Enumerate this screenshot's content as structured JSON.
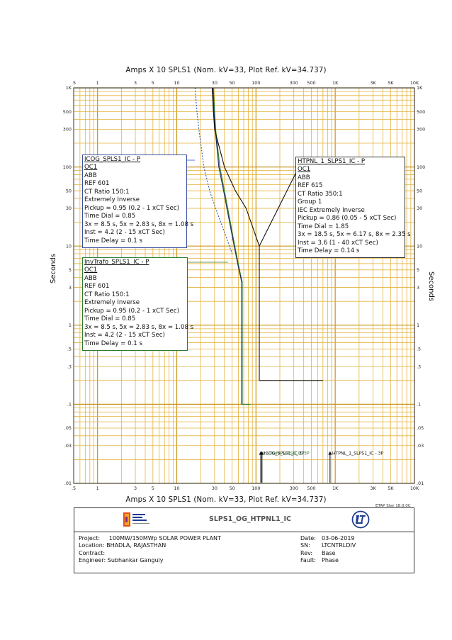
{
  "chart_data": {
    "type": "line",
    "title_top": "Amps  X  10   SPLS1 (Nom. kV=33, Plot Ref. kV=34.737)",
    "title_bottom": "Amps  X  10   SPLS1 (Nom. kV=33, Plot Ref. kV=34.737)",
    "ylabel": "Seconds",
    "x_scale": "log",
    "y_scale": "log",
    "xlim": [
      0.5,
      10000
    ],
    "ylim": [
      0.01,
      1000
    ],
    "x_ticks": [
      {
        "v": 0.5,
        "t": ".5"
      },
      {
        "v": 1,
        "t": "1"
      },
      {
        "v": 3,
        "t": "3"
      },
      {
        "v": 5,
        "t": "5"
      },
      {
        "v": 10,
        "t": "10"
      },
      {
        "v": 30,
        "t": "30"
      },
      {
        "v": 50,
        "t": "50"
      },
      {
        "v": 100,
        "t": "100"
      },
      {
        "v": 300,
        "t": "300"
      },
      {
        "v": 500,
        "t": "500"
      },
      {
        "v": 1000,
        "t": "1K"
      },
      {
        "v": 3000,
        "t": "3K"
      },
      {
        "v": 5000,
        "t": "5K"
      },
      {
        "v": 10000,
        "t": "10K"
      }
    ],
    "y_ticks": [
      {
        "v": 1000,
        "t": "1K"
      },
      {
        "v": 500,
        "t": "500"
      },
      {
        "v": 300,
        "t": "300"
      },
      {
        "v": 100,
        "t": "100"
      },
      {
        "v": 50,
        "t": "50"
      },
      {
        "v": 30,
        "t": "30"
      },
      {
        "v": 10,
        "t": "10"
      },
      {
        "v": 5,
        "t": "5"
      },
      {
        "v": 3,
        "t": "3"
      },
      {
        "v": 1,
        "t": "1"
      },
      {
        "v": 0.5,
        "t": ".5"
      },
      {
        "v": 0.3,
        "t": ".3"
      },
      {
        "v": 0.1,
        "t": ".1"
      },
      {
        "v": 0.05,
        "t": ".05"
      },
      {
        "v": 0.03,
        "t": ".03"
      },
      {
        "v": 0.01,
        "t": ".01"
      }
    ],
    "grid": true,
    "colors": {
      "grid_minor": "#e3b23c",
      "grid_major": "#c8961e",
      "frame": "#333333"
    },
    "series": [
      {
        "name": "ICOG_SPLS1_IC - P",
        "color": "#3050c8",
        "dash": "2,2",
        "points": [
          [
            17,
            1000
          ],
          [
            18,
            500
          ],
          [
            19,
            300
          ],
          [
            22,
            100
          ],
          [
            26,
            50
          ],
          [
            31,
            30
          ],
          [
            40,
            15
          ],
          [
            50,
            8
          ]
        ]
      },
      {
        "name": "InvTrafo_SPLS1_IC - P",
        "color": "#2f7a2f",
        "dash": "",
        "points": [
          [
            29,
            1000
          ],
          [
            30,
            500
          ],
          [
            31,
            300
          ],
          [
            35,
            100
          ],
          [
            40,
            50
          ],
          [
            44,
            30
          ],
          [
            54,
            10
          ],
          [
            62,
            5
          ],
          [
            67,
            3.5
          ],
          [
            67,
            0.1
          ],
          [
            85,
            0.1
          ]
        ]
      },
      {
        "name": "ICOG_SPLS1_IC - P",
        "color": "#1a2a6a",
        "dash": "",
        "points": [
          [
            28.5,
            1000
          ],
          [
            29.5,
            500
          ],
          [
            30.5,
            300
          ],
          [
            34,
            100
          ],
          [
            39,
            50
          ],
          [
            43,
            30
          ],
          [
            53,
            10
          ],
          [
            61,
            5
          ],
          [
            66,
            3.5
          ],
          [
            66,
            0.1
          ]
        ]
      },
      {
        "name": "HTPNL_1_SLPS1_IC - P",
        "color": "#111111",
        "dash": "",
        "points": [
          [
            28,
            1000
          ],
          [
            29,
            500
          ],
          [
            30,
            300
          ],
          [
            40,
            100
          ],
          [
            55,
            50
          ],
          [
            75,
            30
          ],
          [
            110,
            10
          ],
          [
            330,
            90
          ],
          [
            400,
            100
          ],
          [
            400,
            100
          ]
        ]
      },
      {
        "name": "HTPNL_1_SLPS1_IC - P",
        "color": "#111111",
        "dash": "",
        "points": [
          [
            110,
            10
          ],
          [
            110,
            0.2
          ],
          [
            700,
            0.2
          ]
        ]
      }
    ],
    "short_circuit_markers": [
      {
        "x": 115,
        "label": "InvTrafo_SPLS1_IC 3P"
      },
      {
        "x": 119,
        "label": "ICOG_SPLS1_IC 3P"
      },
      {
        "x": 860,
        "label": "HTPNL_1_SLPS1_IC - 3P"
      }
    ]
  },
  "boxes": {
    "icog": {
      "lines": [
        "ICOG_SPLS1_IC - P",
        "OC1",
        "ABB",
        "REF 601",
        "CT Ratio 150:1",
        "Extremely Inverse",
        "Pickup = 0.95 (0.2 - 1  xCT Sec)",
        "Time Dial = 0.85",
        "3x = 8.5 s, 5x = 2.83 s, 8x = 1.08 s",
        "Inst = 4.2 (2 - 15  xCT Sec)",
        "Time Delay = 0.1 s"
      ]
    },
    "invtrafo": {
      "lines": [
        "InvTrafo_SPLS1_IC - P",
        "OC1",
        "ABB",
        "REF 601",
        "CT Ratio 150:1",
        "Extremely Inverse",
        "Pickup = 0.95 (0.2 - 1  xCT Sec)",
        "Time Dial = 0.85",
        "3x = 8.5 s, 5x = 2.83 s, 8x = 1.08 s",
        "Inst = 4.2 (2 - 15  xCT Sec)",
        "Time Delay = 0.1 s"
      ]
    },
    "htpnl": {
      "lines": [
        "HTPNL_1_SLPS1_IC - P",
        "OC1",
        "ABB",
        "REF 615",
        "CT Ratio 350:1",
        "Group 1",
        "IEC Extremely Inverse",
        "Pickup = 0.86 (0.05 - 5  xCT Sec)",
        "Time Dial = 1.85",
        "3x = 18.5 s, 5x = 6.17 s, 8x = 2.35 s",
        "Inst = 3.6 (1 - 40  xCT Sec)",
        "Time Delay = 0.14 s"
      ]
    }
  },
  "footer": {
    "etap": "ETAP Star 18.0.0C",
    "drawing_name": "SLPS1_OG_HTPNL1_IC",
    "project_label": "Project:",
    "project": "100MW/150MWp SOLAR POWER PLANT",
    "location_label": "Location:",
    "location": "BHADLA, RAJASTHAN",
    "contract_label": "Contract:",
    "engineer_label": "Engineer:",
    "engineer": "Subhankar Ganguly",
    "date_label": "Date:",
    "date": "03-06-2019",
    "sn_label": "SN:",
    "sn": "LTCNTRLDIV",
    "rev_label": "Rev:",
    "rev": "Base",
    "fault_label": "Fault:",
    "fault": "Phase"
  }
}
